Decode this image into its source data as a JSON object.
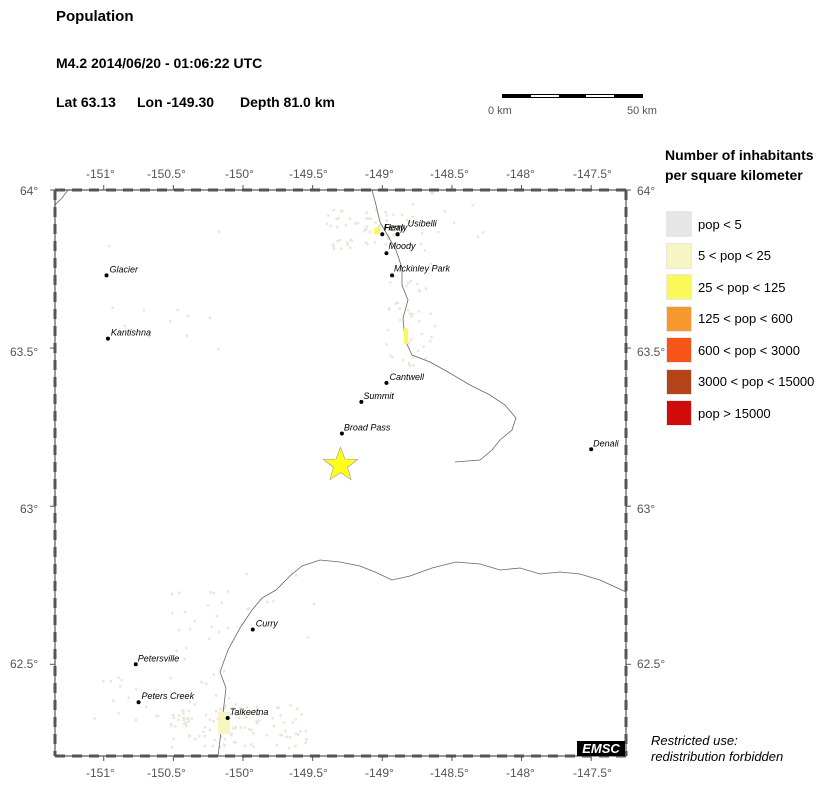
{
  "header": {
    "title": "Population",
    "event": "M4.2  2014/06/20 - 01:06:22 UTC",
    "lat": "Lat 63.13",
    "lon": "Lon -149.30",
    "depth": "Depth  81.0 km"
  },
  "scale": {
    "left": "0 km",
    "right": "50 km"
  },
  "axes": {
    "x_top": [
      "-151°",
      "-150.5°",
      "-150°",
      "-149.5°",
      "-149°",
      "-148.5°",
      "-148°",
      "-147.5°"
    ],
    "x_bottom": [
      "-151°",
      "-150.5°",
      "-150°",
      "-149.5°",
      "-149°",
      "-148.5°",
      "-148°",
      "-147.5°"
    ],
    "y_left": [
      "64°",
      "63.5°",
      "63°",
      "62.5°"
    ],
    "y_right": [
      "64°",
      "63.5°",
      "63°",
      "62.5°"
    ]
  },
  "legend": {
    "title_line1": "Number of inhabitants",
    "title_line2": "per square kilometer",
    "items": [
      {
        "label": "pop < 5",
        "color": "#e6e6e6"
      },
      {
        "label": "5 < pop < 25",
        "color": "#f7f5c1"
      },
      {
        "label": "25 < pop < 125",
        "color": "#f9f95a"
      },
      {
        "label": "125 < pop < 600",
        "color": "#f7982e"
      },
      {
        "label": "600 < pop < 3000",
        "color": "#f7541a"
      },
      {
        "label": "3000 < pop < 15000",
        "color": "#b54319"
      },
      {
        "label": "pop > 15000",
        "color": "#d10a0a"
      }
    ]
  },
  "map": {
    "epicenter": {
      "lon": -149.3,
      "lat": 63.13,
      "color": "#ffff1a"
    },
    "places": [
      {
        "name": "Healy",
        "lon": -149.0,
        "lat": 63.86
      },
      {
        "name": "Ferry",
        "lon": -148.89,
        "lat": 63.86
      },
      {
        "name": "Usibelli",
        "lon": -148.89,
        "lat": 63.86
      },
      {
        "name": "Moody",
        "lon": -148.97,
        "lat": 63.8
      },
      {
        "name": "Mckinley Park",
        "lon": -148.93,
        "lat": 63.73
      },
      {
        "name": "Glacier",
        "lon": -150.98,
        "lat": 63.73
      },
      {
        "name": "Kantishna",
        "lon": -150.97,
        "lat": 63.53
      },
      {
        "name": "Cantwell",
        "lon": -148.97,
        "lat": 63.39
      },
      {
        "name": "Summit",
        "lon": -149.15,
        "lat": 63.33
      },
      {
        "name": "Broad Pass",
        "lon": -149.29,
        "lat": 63.23
      },
      {
        "name": "Denali",
        "lon": -147.5,
        "lat": 63.18
      },
      {
        "name": "Curry",
        "lon": -149.93,
        "lat": 62.61
      },
      {
        "name": "Petersville",
        "lon": -150.77,
        "lat": 62.5
      },
      {
        "name": "Peters Creek",
        "lon": -150.75,
        "lat": 62.38
      },
      {
        "name": "Talkeetna",
        "lon": -150.11,
        "lat": 62.33
      }
    ]
  },
  "footer": {
    "logo": "EMSC",
    "note_line1": "Restricted use:",
    "note_line2": "redistribution forbidden"
  }
}
